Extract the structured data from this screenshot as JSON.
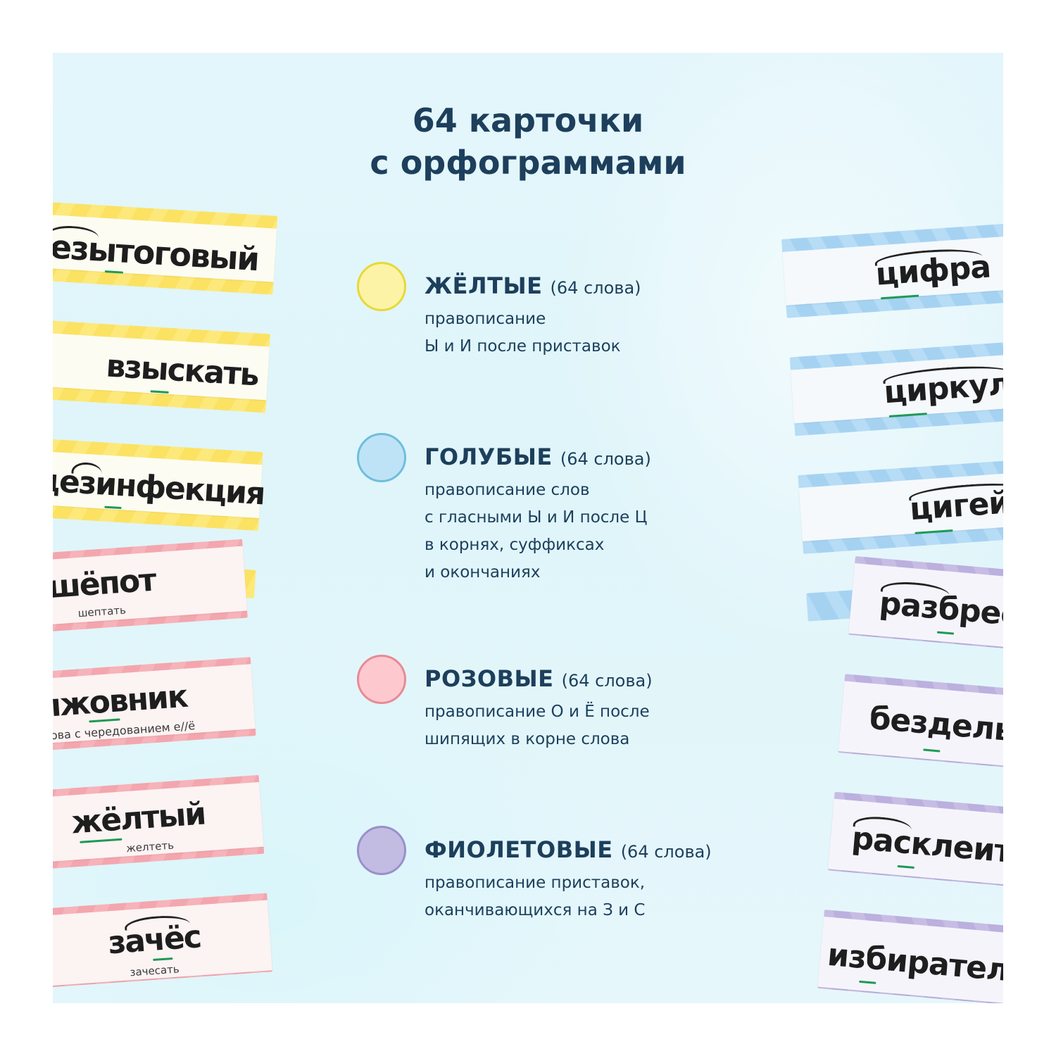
{
  "title": {
    "line1": "64 карточки",
    "line2": "с орфограммами"
  },
  "legend": [
    {
      "name": "ЖЁЛТЫЕ",
      "count": "(64 слова)",
      "color": "#fcf3a6",
      "border": "#e6d93a",
      "desc": [
        "правописание",
        "Ы и И после приставок"
      ]
    },
    {
      "name": "ГОЛУБЫЕ",
      "count": "(64 слова)",
      "color": "#bfe3f6",
      "border": "#6fbedc",
      "desc": [
        "правописание слов",
        "с гласными Ы и И после Ц",
        "в корнях, суффиксах",
        "и окончаниях"
      ]
    },
    {
      "name": "РОЗОВЫЕ",
      "count": "(64 слова)",
      "color": "#fdc9cf",
      "border": "#e88a95",
      "desc": [
        "правописание О и Ё после",
        "шипящих в корне слова"
      ]
    },
    {
      "name": "ФИОЛЕТОВЫЕ",
      "count": "(64 слова)",
      "color": "#c3bce2",
      "border": "#9a8fcb",
      "desc": [
        "правописание приставок,",
        "оканчивающихся на З и С"
      ]
    }
  ],
  "cards": {
    "yellow": [
      {
        "word": "безытоговый"
      },
      {
        "word": "взыскать"
      },
      {
        "word": "дезинфекция"
      }
    ],
    "pink": [
      {
        "word": "шёпот",
        "sub": "шептать"
      },
      {
        "word": "крыжовник",
        "sub": "слова с чередованием е//ё"
      },
      {
        "word": "жёлтый",
        "sub": "желтеть"
      },
      {
        "word": "зачёс",
        "sub": "зачесать"
      }
    ],
    "blue": [
      {
        "word": "цифра"
      },
      {
        "word": "циркуль"
      },
      {
        "word": "цигейка"
      }
    ],
    "violet": [
      {
        "word": "разбрести"
      },
      {
        "word": "безделье"
      },
      {
        "word": "расклеить"
      },
      {
        "word": "избиратель"
      }
    ]
  }
}
